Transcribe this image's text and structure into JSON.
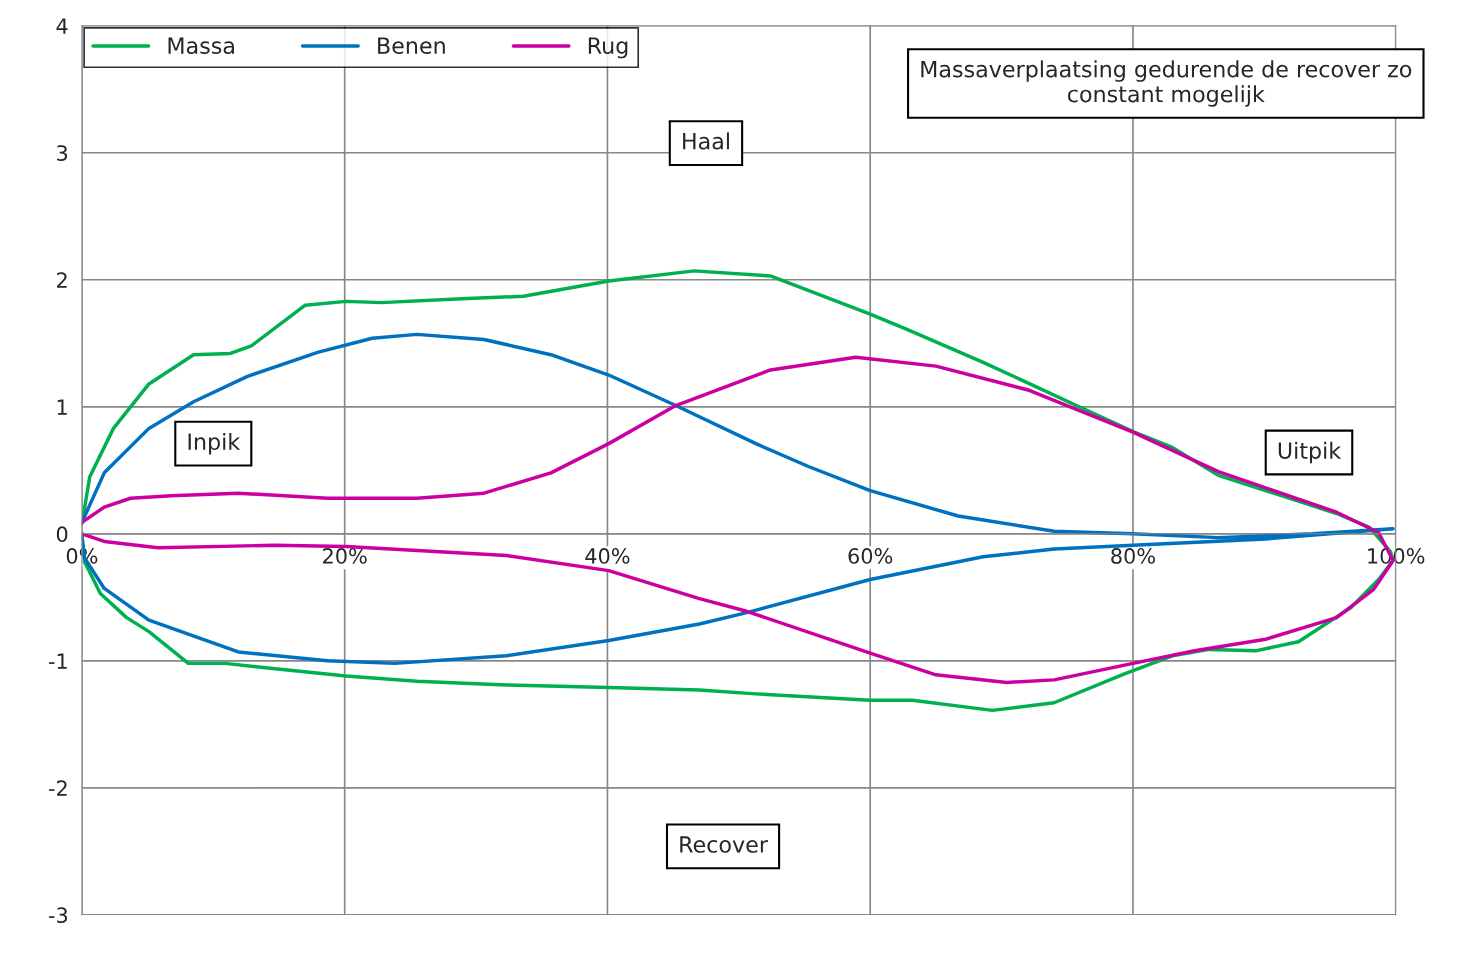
{
  "chart_data": {
    "type": "line",
    "xlim": [
      0,
      100
    ],
    "ylim": [
      -3,
      4
    ],
    "xticks": [
      {
        "value": 0,
        "label": "0%"
      },
      {
        "value": 20,
        "label": "20%"
      },
      {
        "value": 40,
        "label": "40%"
      },
      {
        "value": 60,
        "label": "60%"
      },
      {
        "value": 80,
        "label": "80%"
      },
      {
        "value": 100,
        "label": "100%"
      }
    ],
    "yticks": [
      -3,
      -2,
      -1,
      0,
      1,
      2,
      3,
      4
    ],
    "grid": true,
    "legend": "top left",
    "line_style": "solid",
    "marker": "none",
    "annotations": [
      "Massaverplaatsing gedurende de recover zo constant mogelijk",
      "Haal",
      "Inpik",
      "Uitpik",
      "Recover"
    ],
    "series": [
      {
        "name": "Massa",
        "color": "#00b050",
        "x": [
          0,
          0.6,
          2.4,
          5.1,
          8.5,
          11.3,
          12.9,
          17.0,
          20.1,
          22.8,
          28.9,
          33.6,
          40.1,
          46.6,
          52.4,
          60.0,
          62.8,
          68.6,
          75.7,
          80.1,
          83.0,
          86.5,
          95.5,
          98.0,
          99.6,
          99.8,
          98.7,
          96.6,
          92.6,
          89.4,
          85.8,
          83.0,
          79.4,
          74.0,
          69.3,
          63.2,
          60.0,
          51.3,
          47.0,
          40.1,
          32.3,
          25.5,
          20.1,
          13.6,
          10.9,
          8.1,
          5.1,
          3.4,
          1.4,
          0.2,
          0
        ],
        "values": [
          0.08,
          0.45,
          0.83,
          1.18,
          1.41,
          1.42,
          1.48,
          1.8,
          1.83,
          1.82,
          1.85,
          1.87,
          1.99,
          2.07,
          2.03,
          1.73,
          1.61,
          1.35,
          1.01,
          0.8,
          0.68,
          0.46,
          0.16,
          0.05,
          -0.14,
          -0.21,
          -0.36,
          -0.58,
          -0.85,
          -0.92,
          -0.91,
          -0.96,
          -1.1,
          -1.33,
          -1.39,
          -1.31,
          -1.31,
          -1.26,
          -1.23,
          -1.21,
          -1.19,
          -1.16,
          -1.12,
          -1.05,
          -1.02,
          -1.02,
          -0.77,
          -0.66,
          -0.47,
          -0.22,
          -0.02
        ]
      },
      {
        "name": "Benen",
        "color": "#0070c0",
        "x": [
          0,
          1.7,
          5.1,
          8.5,
          12.6,
          18.0,
          22.1,
          25.5,
          30.6,
          35.7,
          40.1,
          45.2,
          51.3,
          55.3,
          60.0,
          66.7,
          74.0,
          80.0,
          86.5,
          93.7,
          99.8,
          90.1,
          80.0,
          74.0,
          68.6,
          60.0,
          50.6,
          47.0,
          40.1,
          32.3,
          23.8,
          18.7,
          11.9,
          5.1,
          1.7,
          0.2,
          0
        ],
        "values": [
          0.09,
          0.48,
          0.83,
          1.04,
          1.24,
          1.43,
          1.54,
          1.57,
          1.53,
          1.41,
          1.25,
          1.01,
          0.71,
          0.53,
          0.34,
          0.14,
          0.02,
          0,
          -0.03,
          0,
          0.04,
          -0.04,
          -0.09,
          -0.12,
          -0.18,
          -0.36,
          -0.62,
          -0.71,
          -0.84,
          -0.96,
          -1.02,
          -1.0,
          -0.93,
          -0.68,
          -0.43,
          -0.19,
          -0.02
        ]
      },
      {
        "name": "Rug",
        "color": "#cc00a0",
        "x": [
          0,
          1.7,
          3.7,
          6.8,
          11.9,
          18.7,
          25.5,
          30.6,
          35.7,
          40.1,
          45.2,
          52.4,
          58.9,
          65.0,
          72.1,
          80.0,
          86.5,
          95.5,
          98.7,
          99.8,
          98.3,
          95.5,
          90.1,
          84.7,
          80.0,
          74.0,
          70.4,
          65.0,
          60.0,
          50.6,
          47.0,
          40.1,
          32.3,
          20.1,
          14.6,
          5.8,
          1.7,
          0
        ],
        "values": [
          0.09,
          0.21,
          0.28,
          0.3,
          0.32,
          0.28,
          0.28,
          0.32,
          0.48,
          0.71,
          1.01,
          1.29,
          1.39,
          1.32,
          1.13,
          0.8,
          0.49,
          0.17,
          0.01,
          -0.21,
          -0.44,
          -0.66,
          -0.83,
          -0.92,
          -1.02,
          -1.15,
          -1.17,
          -1.11,
          -0.94,
          -0.61,
          -0.51,
          -0.29,
          -0.17,
          -0.1,
          -0.09,
          -0.11,
          -0.06,
          0
        ]
      }
    ]
  }
}
